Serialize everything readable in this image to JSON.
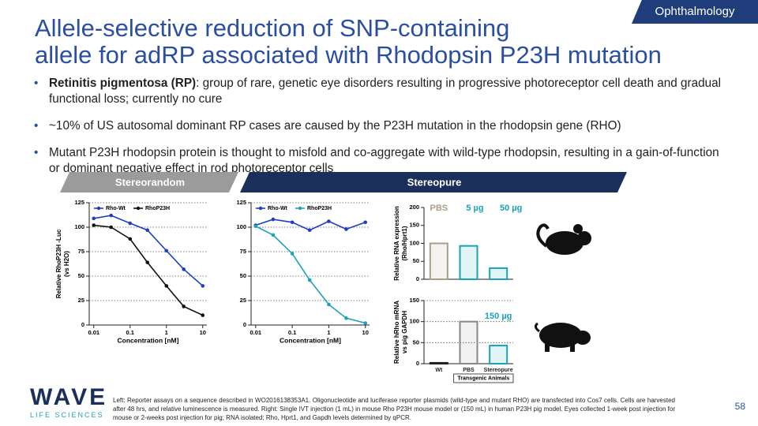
{
  "header": {
    "tag": "Ophthalmology",
    "title": [
      "Allele-selective reduction of SNP-containing",
      "allele for adRP associated with Rhodopsin P23H mutation"
    ]
  },
  "bullets": [
    {
      "bold": "Retinitis pigmentosa (RP)",
      "text": ": group of rare, genetic eye disorders resulting in progressive photoreceptor cell death and gradual functional loss; currently no cure"
    },
    {
      "text": "~10% of US autosomal dominant RP cases are caused by the P23H mutation in the rhodopsin gene (RHO)"
    },
    {
      "text": "Mutant P23H rhodopsin protein is thought to misfold and co-aggregate with wild-type rhodopsin, resulting in a gain-of-function or dominant negative effect in rod photoreceptor cells"
    }
  ],
  "tabs": [
    "Stereorandom",
    "Stereopure"
  ],
  "chart_data": [
    {
      "type": "line",
      "xlog": true,
      "grid": true,
      "legend": "upper left",
      "xlabel": "Concentration [nM]",
      "ylabel": [
        "Relative RhoP23H -Luc",
        "(vs H2O)"
      ],
      "x": [
        0.01,
        0.03,
        0.1,
        0.3,
        1,
        3,
        10
      ],
      "series": [
        {
          "name": "Rho-Wt",
          "color": "#1f3fbf",
          "values": [
            109,
            112,
            104,
            97,
            76,
            57,
            40
          ]
        },
        {
          "name": "RhoP23H",
          "color": "#111111",
          "values": [
            102,
            100,
            88,
            64,
            40,
            19,
            10
          ]
        }
      ],
      "xlim": [
        0.0075,
        13
      ],
      "xticks": [
        0.01,
        0.1,
        1,
        10
      ],
      "ylim": [
        0,
        125
      ],
      "yticks": [
        0,
        25,
        50,
        75,
        100,
        125
      ]
    },
    {
      "type": "line",
      "xlog": true,
      "grid": true,
      "legend": "upper left",
      "xlabel": "Concentration [nM]",
      "x": [
        0.01,
        0.03,
        0.1,
        0.3,
        1,
        3,
        10
      ],
      "series": [
        {
          "name": "Rho-Wt",
          "color": "#1f3fbf",
          "values": [
            102,
            108,
            105,
            97,
            106,
            98,
            105
          ]
        },
        {
          "name": "RhoP23H",
          "color": "#1aa3b8",
          "values": [
            101,
            92,
            73,
            46,
            21,
            7,
            2
          ]
        }
      ],
      "xlim": [
        0.0075,
        13
      ],
      "xticks": [
        0.01,
        0.1,
        1,
        10
      ],
      "ylim": [
        0,
        125
      ],
      "yticks": [
        0,
        25,
        50,
        75,
        100,
        125
      ]
    },
    {
      "type": "bar",
      "grid": false,
      "category_labels": "top",
      "ylabel": [
        "Relative RNA expression",
        "(Rho/Hprt1)"
      ],
      "categories": [
        "PBS",
        "5 µg",
        "50 µg"
      ],
      "values": [
        100,
        93,
        31
      ],
      "colors": [
        "#a89f86",
        "#1aa3b8",
        "#1aa3b8"
      ],
      "ylim": [
        0,
        200
      ],
      "yticks": [
        0,
        50,
        100,
        150,
        200
      ]
    },
    {
      "type": "bar",
      "grid": true,
      "category_labels": "bottom",
      "ylabel": [
        "Relative hRho mRNA",
        "vs pig GAPDH"
      ],
      "categories": [
        "Wt",
        "PBS",
        "Stereopure"
      ],
      "values": [
        2,
        100,
        43
      ],
      "colors": [
        "#222222",
        "#888888",
        "#1aa3b8"
      ],
      "annotations": [
        "150 µg",
        "Transgenic Animals"
      ],
      "ylim": [
        0,
        150
      ],
      "yticks": [
        0,
        50,
        100,
        150
      ]
    }
  ],
  "footnote": "Left: Reporter assays on a sequence described in WO2016138353A1. Oligonucleotide and luciferase reporter plasmids (wild-type and mutant RHO) are transfected into Cos7 cells. Cells are harvested after 48 hrs, and relative luminescence is measured. Right: Single IVT injection (1 mL) in mouse Rho P23H mouse model or (150 mL) in human P23H pig model. Eyes collected 1-week post injection for mouse or 2-weeks post injection for pig; RNA isolated; Rho, Hprt1, and Gapdh levels determined by qPCR.",
  "logo": {
    "name": "WAVE",
    "sub": "LIFE SCIENCES"
  },
  "page_number": "58"
}
